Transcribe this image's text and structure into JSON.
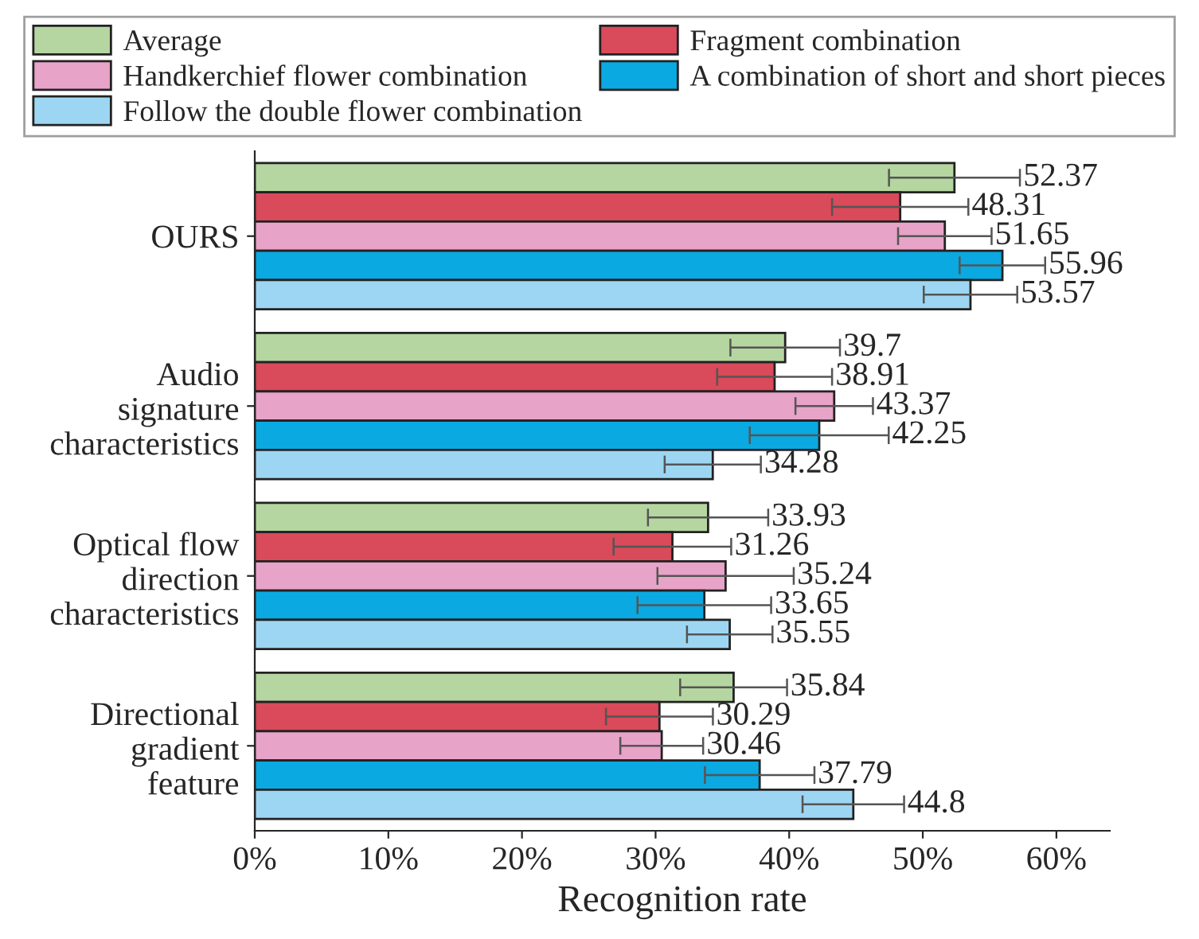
{
  "chart_data": {
    "type": "bar",
    "orientation": "horizontal",
    "xlabel": "Recognition rate",
    "categories": [
      "OURS",
      "Audio\nsignature\ncharacteristics",
      "Optical flow\ndirection\ncharacteristics",
      "Directional\ngradient\nfeature"
    ],
    "series": [
      {
        "name": "Average",
        "color": "#b5d6a0",
        "values": [
          52.37,
          39.7,
          33.93,
          35.84
        ],
        "errors": [
          4.9,
          4.1,
          4.5,
          4.0
        ]
      },
      {
        "name": "Fragment combination",
        "color": "#d94a5a",
        "values": [
          48.31,
          38.91,
          31.26,
          30.29
        ],
        "errors": [
          5.1,
          4.3,
          4.4,
          4.0
        ]
      },
      {
        "name": "Handkerchief flower combination",
        "color": "#e8a3c8",
        "values": [
          51.65,
          43.37,
          35.24,
          30.46
        ],
        "errors": [
          3.5,
          2.9,
          5.1,
          3.1
        ]
      },
      {
        "name": "A combination of short and short pieces",
        "color": "#0aa9e1",
        "values": [
          55.96,
          42.25,
          33.65,
          37.79
        ],
        "errors": [
          3.2,
          5.2,
          5.0,
          4.1
        ]
      },
      {
        "name": "Follow the double flower combination",
        "color": "#9dd6f2",
        "values": [
          53.57,
          34.28,
          35.55,
          44.8
        ],
        "errors": [
          3.5,
          3.6,
          3.2,
          3.8
        ]
      }
    ],
    "xlim": [
      0,
      64
    ],
    "xticks": [
      {
        "value": 0,
        "label": "0%"
      },
      {
        "value": 10,
        "label": "10%"
      },
      {
        "value": 20,
        "label": "20%"
      },
      {
        "value": 30,
        "label": "30%"
      },
      {
        "value": 40,
        "label": "40%"
      },
      {
        "value": 50,
        "label": "50%"
      },
      {
        "value": 60,
        "label": "60%"
      }
    ],
    "data_labels": true,
    "legend": "top",
    "grid": false
  }
}
